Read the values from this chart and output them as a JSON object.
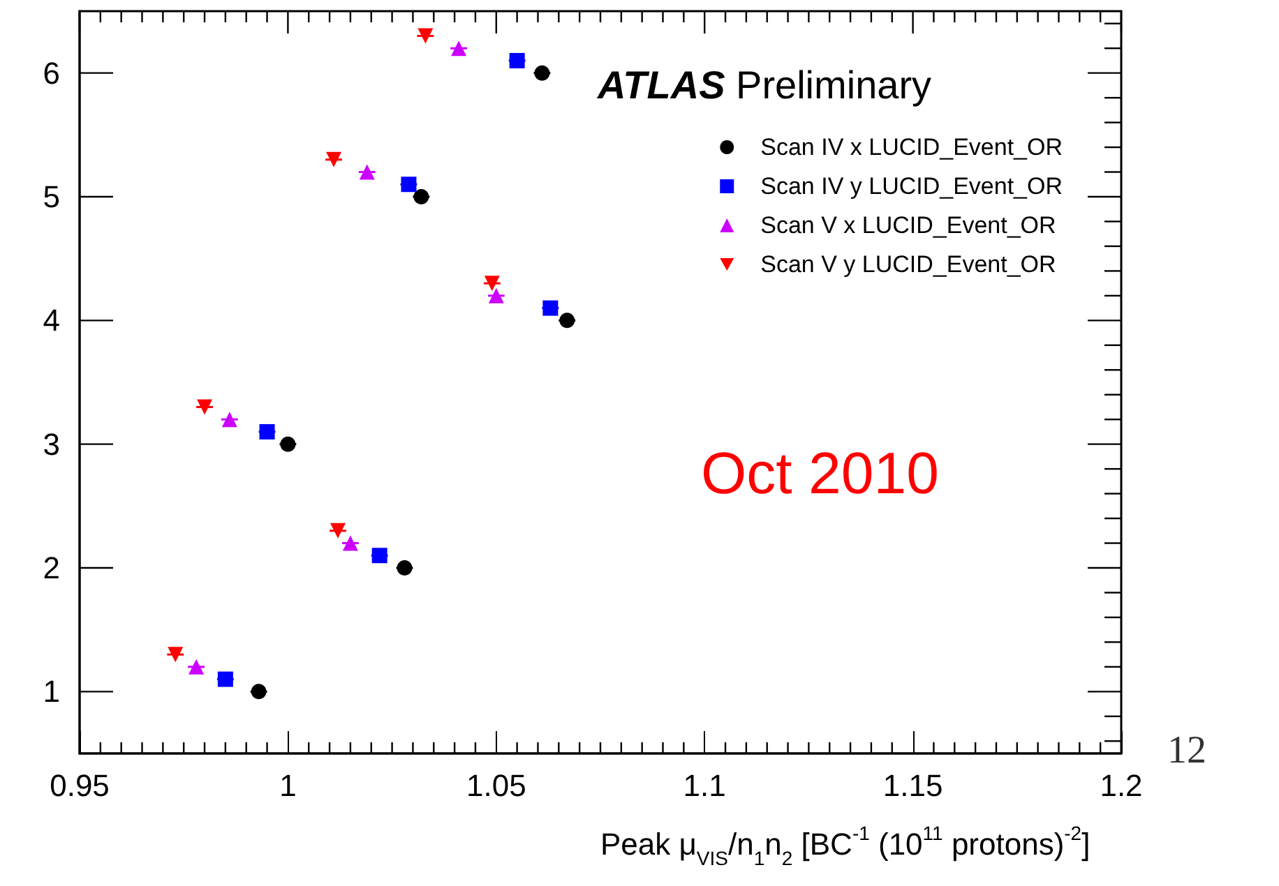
{
  "chart_data": {
    "type": "scatter",
    "xlabel": "Peak μ$_{VIS}$/n$_{1}$n$_{2}$ [BC$^{-1}$ (10$^{11}$ protons)$^{-2}$]",
    "annotations": [
      "ATLAS Preliminary",
      "Oct 2010",
      "12"
    ],
    "series": [
      {
        "name": "Scan IV x LUCID_Event_OR",
        "color": "#000000",
        "marker": "circle",
        "x": [
          0.993,
          1.028,
          1.0,
          1.067,
          1.032,
          1.061
        ],
        "values": [
          1,
          2,
          3,
          4,
          5,
          6
        ],
        "xerrors": [
          0.002,
          0.002,
          0.002,
          0.002,
          0.002,
          0.002
        ]
      },
      {
        "name": "Scan IV y LUCID_Event_OR",
        "color": "#0000ff",
        "marker": "square",
        "x": [
          0.985,
          1.022,
          0.995,
          1.063,
          1.029,
          1.055
        ],
        "values": [
          1.1,
          2.1,
          3.1,
          4.1,
          5.1,
          6.1
        ],
        "xerrors": [
          0.002,
          0.002,
          0.002,
          0.002,
          0.002,
          0.002
        ]
      },
      {
        "name": "Scan V x LUCID_Event_OR",
        "color": "#cc00ff",
        "marker": "triangle",
        "x": [
          0.978,
          1.015,
          0.986,
          1.05,
          1.019,
          1.041
        ],
        "values": [
          1.2,
          2.2,
          3.2,
          4.2,
          5.2,
          6.2
        ],
        "xerrors": [
          0.002,
          0.002,
          0.002,
          0.002,
          0.002,
          0.002
        ]
      },
      {
        "name": "Scan V y LUCID_Event_OR",
        "color": "#ff0000",
        "marker": "triangle_down",
        "x": [
          0.973,
          1.012,
          0.98,
          1.049,
          1.011,
          1.033
        ],
        "values": [
          1.3,
          2.3,
          3.3,
          4.3,
          5.3,
          6.3
        ],
        "xerrors": [
          0.002,
          0.002,
          0.002,
          0.002,
          0.002,
          0.002
        ]
      }
    ],
    "xlim": [
      0.95,
      1.2
    ],
    "xticks": [
      0.95,
      1,
      1.05,
      1.1,
      1.15,
      1.2
    ],
    "ylim": [
      0.5,
      6.5
    ],
    "yticks": [
      1,
      2,
      3,
      4,
      5,
      6
    ],
    "grid": false,
    "legend": "top right"
  }
}
